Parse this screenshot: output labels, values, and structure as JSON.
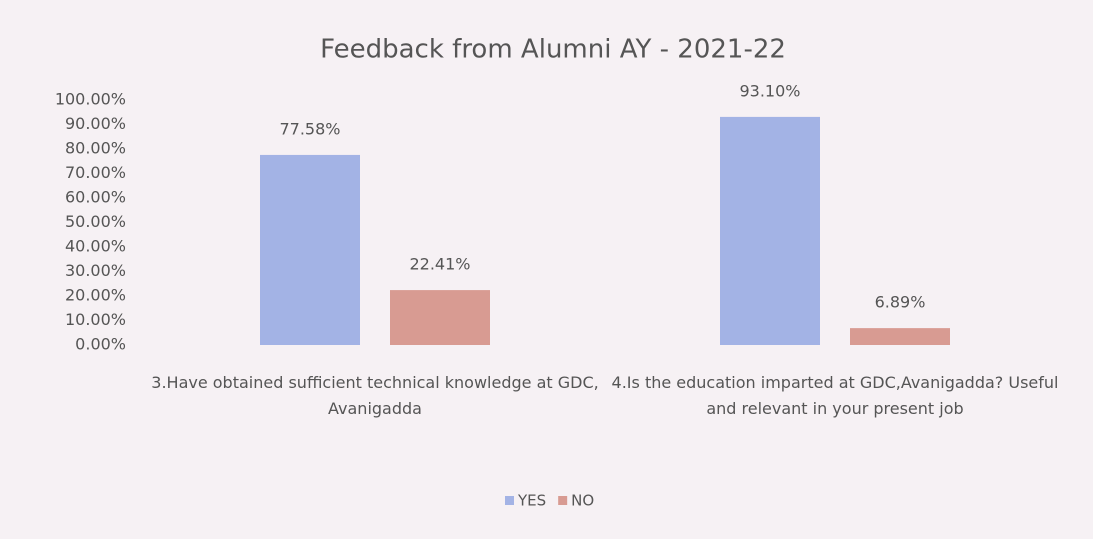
{
  "chart_data": {
    "type": "bar",
    "title": "Feedback from Alumni AY - 2021-22",
    "categories": [
      "3.Have obtained sufficient technical knowledge at GDC, Avanigadda",
      "4.Is the education imparted at GDC,Avanigadda? Useful and relevant in your present job"
    ],
    "series": [
      {
        "name": "YES",
        "color": "#a3b3e5",
        "values": [
          77.58,
          93.1
        ],
        "value_labels": [
          "77.58%",
          "93.10%"
        ]
      },
      {
        "name": "NO",
        "color": "#d89b92",
        "values": [
          22.41,
          6.89
        ],
        "value_labels": [
          "22.41%",
          "6.89%"
        ]
      }
    ],
    "ylim": [
      0,
      100
    ],
    "yticks": [
      {
        "value": 0,
        "label": "0.00%"
      },
      {
        "value": 10,
        "label": "10.00%"
      },
      {
        "value": 20,
        "label": "20.00%"
      },
      {
        "value": 30,
        "label": "30.00%"
      },
      {
        "value": 40,
        "label": "40.00%"
      },
      {
        "value": 50,
        "label": "50.00%"
      },
      {
        "value": 60,
        "label": "60.00%"
      },
      {
        "value": 70,
        "label": "70.00%"
      },
      {
        "value": 80,
        "label": "80.00%"
      },
      {
        "value": 90,
        "label": "90.00%"
      },
      {
        "value": 100,
        "label": "100.00%"
      }
    ],
    "grid": false,
    "legend": "bottom"
  }
}
